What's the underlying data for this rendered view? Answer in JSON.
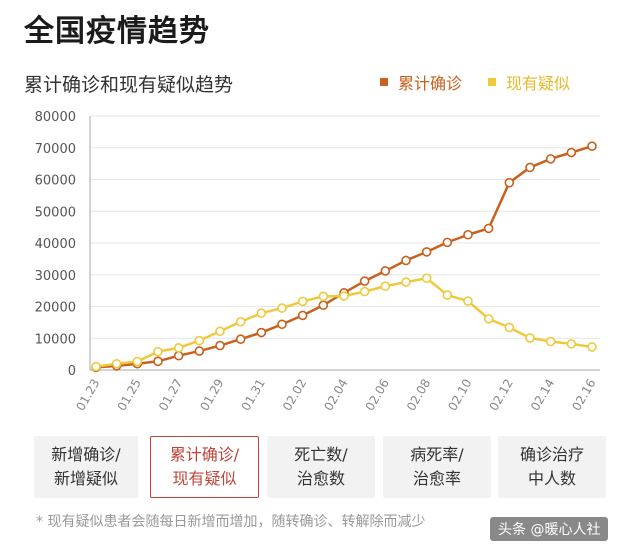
{
  "page": {
    "title": "全国疫情趋势"
  },
  "footnote": "* 现有疑似患者会随每日新增而增加，随转确诊、转解除而减少",
  "watermark": "头条 @暖心人社",
  "tabs": [
    {
      "line1": "新增确诊/",
      "line2": "新增疑似",
      "active": false
    },
    {
      "line1": "累计确诊/",
      "line2": "现有疑似",
      "active": true
    },
    {
      "line1": "死亡数/",
      "line2": "治愈数",
      "active": false
    },
    {
      "line1": "病死率/",
      "line2": "治愈率",
      "active": false
    },
    {
      "line1": "确诊治疗",
      "line2": "中人数",
      "active": false
    }
  ],
  "colors": {
    "confirmed": "#c8601e",
    "suspected": "#efc93c",
    "grid": "#e6e6e6",
    "axis": "#888888",
    "tab_active": "#c0443a"
  },
  "chart_data": {
    "type": "line",
    "title": "累计确诊和现有疑似趋势",
    "xlabel": "",
    "ylabel": "",
    "ylim": [
      0,
      80000
    ],
    "yticks": [
      0,
      10000,
      20000,
      30000,
      40000,
      50000,
      60000,
      70000,
      80000
    ],
    "x": [
      "01.23",
      "01.24",
      "01.25",
      "01.26",
      "01.27",
      "01.28",
      "01.29",
      "01.30",
      "01.31",
      "02.01",
      "02.02",
      "02.03",
      "02.04",
      "02.05",
      "02.06",
      "02.07",
      "02.08",
      "02.09",
      "02.10",
      "02.11",
      "02.12",
      "02.13",
      "02.14",
      "02.15",
      "02.16"
    ],
    "xtick_labels": [
      "01.23",
      "01.25",
      "01.27",
      "01.29",
      "01.31",
      "02.02",
      "02.04",
      "02.06",
      "02.08",
      "02.10",
      "02.12",
      "02.14",
      "02.16"
    ],
    "legend_position": "top-right",
    "grid": "horizontal",
    "series": [
      {
        "name": "累计确诊",
        "color": "#c8601e",
        "values": [
          830,
          1290,
          1980,
          2740,
          4500,
          5970,
          7700,
          9700,
          11800,
          14400,
          17200,
          20400,
          24300,
          28000,
          31200,
          34500,
          37200,
          40200,
          42600,
          44600,
          59000,
          63800,
          66500,
          68500,
          70500
        ]
      },
      {
        "name": "现有疑似",
        "color": "#efc93c",
        "values": [
          1070,
          1960,
          2680,
          5790,
          6980,
          9240,
          12200,
          15200,
          17900,
          19500,
          21600,
          23200,
          23300,
          24700,
          26400,
          27700,
          28900,
          23600,
          21700,
          16100,
          13400,
          10100,
          8970,
          8230,
          7260
        ]
      }
    ]
  }
}
